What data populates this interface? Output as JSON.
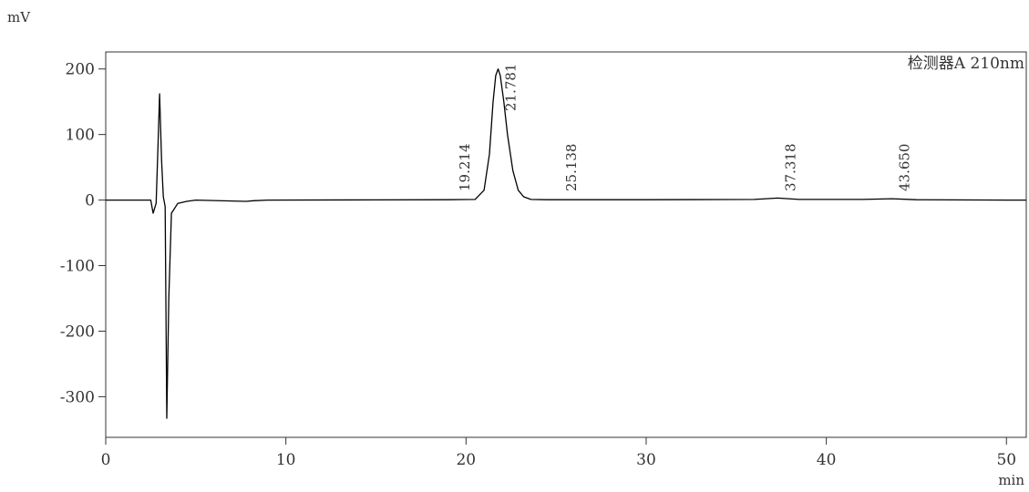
{
  "chart_data": {
    "type": "line",
    "y_unit": "mV",
    "x_unit": "min",
    "detector_label": "检测器A 210nm",
    "x": [
      0,
      2.5,
      2.63,
      2.8,
      2.9,
      2.99,
      3.1,
      3.2,
      3.3,
      3.39,
      3.5,
      3.65,
      4.0,
      4.5,
      5,
      7.8,
      8.2,
      9,
      15,
      19,
      20.5,
      21.0,
      21.3,
      21.5,
      21.65,
      21.78,
      21.9,
      22.1,
      22.3,
      22.6,
      22.9,
      23.2,
      23.6,
      24.5,
      30,
      36,
      37.3,
      38.5,
      42,
      43.65,
      45,
      50,
      51.1
    ],
    "series": [
      {
        "name": "检测器A 210nm",
        "color": "#000000",
        "values": [
          0,
          0,
          -20,
          -5,
          80,
          162,
          60,
          5,
          -10,
          -333,
          -150,
          -20,
          -5,
          -2,
          0,
          -2,
          -1,
          0,
          0.3,
          0.5,
          1,
          15,
          70,
          150,
          190,
          200,
          190,
          150,
          100,
          45,
          15,
          5,
          1,
          0.5,
          0.5,
          1,
          3,
          1,
          1,
          2,
          0.5,
          0,
          0
        ]
      }
    ],
    "peak_times": [
      19.214,
      21.781,
      25.138,
      37.318,
      {
        "value": 43.65,
        "label": "43.650"
      }
    ],
    "xlim": [
      0,
      51.1
    ],
    "ylim": [
      -362,
      226
    ],
    "xticks": [
      0,
      10,
      20,
      30,
      40,
      50
    ],
    "yticks": [
      -300,
      -200,
      -100,
      0,
      100,
      200
    ],
    "grid": false
  }
}
